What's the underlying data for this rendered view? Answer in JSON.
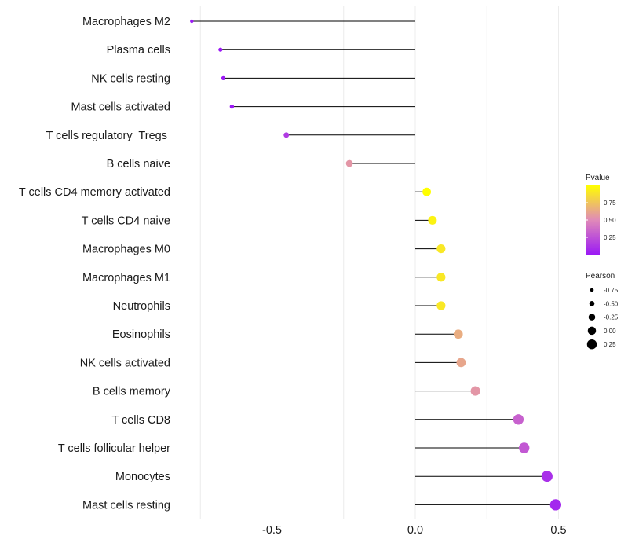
{
  "chart_data": {
    "type": "lollipop",
    "title": "",
    "xlabel": "",
    "ylabel": "",
    "xlim": [
      -0.85,
      0.52
    ],
    "x_ticks": [
      -0.5,
      0.0,
      0.5
    ],
    "x_tick_labels": [
      "-0.5",
      "0.0",
      "0.5"
    ],
    "grid": true,
    "categories": [
      "Macrophages M2",
      "Plasma cells",
      "NK cells resting",
      "Mast cells activated",
      "T cells regulatory  Tregs ",
      "B cells naive",
      "T cells CD4 memory activated",
      "T cells CD4 naive",
      "Macrophages M0",
      "Macrophages M1",
      "Neutrophils",
      "Eosinophils",
      "NK cells activated",
      "B cells memory",
      "T cells CD8",
      "T cells follicular helper",
      "Monocytes",
      "Mast cells resting"
    ],
    "pearson": [
      -0.78,
      -0.68,
      -0.67,
      -0.64,
      -0.45,
      -0.23,
      0.04,
      0.06,
      0.09,
      0.09,
      0.09,
      0.15,
      0.16,
      0.21,
      0.36,
      0.38,
      0.46,
      0.49
    ],
    "pvalue": [
      0.0,
      0.0,
      0.0,
      0.0,
      0.15,
      0.55,
      1.0,
      0.95,
      0.9,
      0.9,
      0.9,
      0.65,
      0.62,
      0.55,
      0.32,
      0.28,
      0.1,
      0.06
    ],
    "legend_pvalue": {
      "title": "Pvalue",
      "ticks": [
        0.25,
        0.5,
        0.75
      ],
      "tick_labels": [
        "0.25",
        "0.50",
        "0.75"
      ],
      "color_low": "#9b19f5",
      "color_mid": "#e08ab8",
      "color_high": "#ffff00",
      "position": "right"
    },
    "legend_pearson": {
      "title": "Pearson",
      "values": [
        -0.75,
        -0.5,
        -0.25,
        0.0,
        0.25
      ],
      "labels": [
        "-0.75",
        "-0.50",
        "-0.25",
        "0.00",
        "0.25"
      ],
      "position": "right"
    }
  }
}
